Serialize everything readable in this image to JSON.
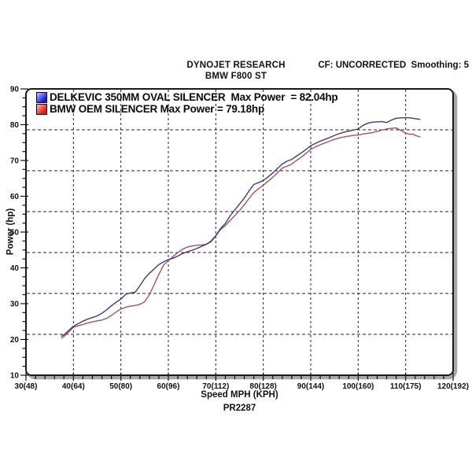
{
  "header": {
    "title": "DYNOJET RESEARCH",
    "subtitle": "BMW F800 ST",
    "correction_info": "CF: UNCORRECTED  Smoothing: 5"
  },
  "legend": {
    "items": [
      {
        "label": "DELKEVIC 350MM OVAL SILENCER  Max Power  = 82.04hp",
        "swatch_color": "#1a1af0",
        "swatch_light": "#c8c8ff"
      },
      {
        "label": "BMW OEM SILENCER Max Power = 79.18hp",
        "swatch_color": "#ee1212",
        "swatch_light": "#ffc4c4"
      }
    ]
  },
  "footer": {
    "run_code": "PR2287"
  },
  "chart_data": {
    "type": "line",
    "title": "DYNOJET RESEARCH",
    "subtitle": "BMW F800 ST",
    "xlabel": "Speed MPH (KPH)",
    "ylabel": "Power (hp)",
    "xlim": [
      30,
      120
    ],
    "ylim": [
      10,
      90
    ],
    "x_minor_step": 2,
    "y_minor_step": 2.5,
    "h_grid_divisions": 7,
    "grid_color": "#222222",
    "frame_color": "#1a1a1a",
    "shadow_color": "#a8a8a8",
    "x_ticks": [
      {
        "v": 30,
        "label": "30(48)"
      },
      {
        "v": 40,
        "label": "40(64)"
      },
      {
        "v": 50,
        "label": "50(80)"
      },
      {
        "v": 60,
        "label": "60(96)"
      },
      {
        "v": 70,
        "label": "70(112)"
      },
      {
        "v": 80,
        "label": "80(128)"
      },
      {
        "v": 90,
        "label": "90(144)"
      },
      {
        "v": 100,
        "label": "100(160)"
      },
      {
        "v": 110,
        "label": "110(175)"
      },
      {
        "v": 120,
        "label": "120(192)"
      }
    ],
    "y_ticks": [
      {
        "v": 10,
        "label": "10"
      },
      {
        "v": 20,
        "label": "20"
      },
      {
        "v": 30,
        "label": "30"
      },
      {
        "v": 40,
        "label": "40"
      },
      {
        "v": 50,
        "label": "50"
      },
      {
        "v": 60,
        "label": "60"
      },
      {
        "v": 70,
        "label": "70"
      },
      {
        "v": 80,
        "label": "80"
      },
      {
        "v": 90,
        "label": "90"
      }
    ],
    "series": [
      {
        "name": "BMW OEM SILENCER",
        "max_power_hp": 79.18,
        "color": "#aa5353",
        "points": [
          [
            37.5,
            20.4
          ],
          [
            38,
            20.8
          ],
          [
            39,
            22.1
          ],
          [
            40,
            23.4
          ],
          [
            41,
            23.8
          ],
          [
            42,
            24.2
          ],
          [
            43,
            24.6
          ],
          [
            44,
            24.9
          ],
          [
            45,
            25.2
          ],
          [
            46,
            25.4
          ],
          [
            47,
            25.9
          ],
          [
            48,
            26.7
          ],
          [
            49,
            27.7
          ],
          [
            50,
            28.5
          ],
          [
            51,
            29.0
          ],
          [
            52,
            29.3
          ],
          [
            53,
            29.5
          ],
          [
            54,
            29.8
          ],
          [
            55,
            30.5
          ],
          [
            56,
            32.5
          ],
          [
            57,
            35.3
          ],
          [
            58,
            38.2
          ],
          [
            59,
            40.8
          ],
          [
            60,
            42.0
          ],
          [
            61,
            43.2
          ],
          [
            62,
            44.3
          ],
          [
            63,
            45.2
          ],
          [
            64,
            45.8
          ],
          [
            65,
            46.1
          ],
          [
            66,
            46.3
          ],
          [
            67,
            46.4
          ],
          [
            68,
            46.6
          ],
          [
            69,
            47.3
          ],
          [
            70,
            48.9
          ],
          [
            71,
            50.7
          ],
          [
            72,
            51.8
          ],
          [
            73,
            53.2
          ],
          [
            74,
            54.6
          ],
          [
            75,
            56.0
          ],
          [
            76,
            57.6
          ],
          [
            77,
            59.4
          ],
          [
            78,
            61.0
          ],
          [
            79,
            62.1
          ],
          [
            80,
            63.1
          ],
          [
            81,
            64.2
          ],
          [
            82,
            65.3
          ],
          [
            83,
            66.6
          ],
          [
            84,
            67.9
          ],
          [
            85,
            68.4
          ],
          [
            86,
            69.0
          ],
          [
            87,
            70.0
          ],
          [
            88,
            70.9
          ],
          [
            89,
            72.0
          ],
          [
            90,
            73.1
          ],
          [
            91,
            73.8
          ],
          [
            92,
            74.4
          ],
          [
            93,
            74.9
          ],
          [
            94,
            75.4
          ],
          [
            95,
            75.9
          ],
          [
            96,
            76.3
          ],
          [
            97,
            76.6
          ],
          [
            98,
            76.8
          ],
          [
            99,
            77.0
          ],
          [
            100,
            77.1
          ],
          [
            101,
            77.4
          ],
          [
            102,
            77.6
          ],
          [
            103,
            77.8
          ],
          [
            104,
            78.1
          ],
          [
            105,
            78.5
          ],
          [
            106,
            78.8
          ],
          [
            107,
            79.0
          ],
          [
            108,
            79.1
          ],
          [
            109,
            78.4
          ],
          [
            110,
            77.6
          ],
          [
            111,
            77.3
          ],
          [
            111.5,
            77.4
          ],
          [
            112,
            77.0
          ],
          [
            113,
            76.6
          ]
        ]
      },
      {
        "name": "DELKEVIC 350MM OVAL SILENCER",
        "max_power_hp": 82.04,
        "color": "#3c3c82",
        "points": [
          [
            37.5,
            20.9
          ],
          [
            38,
            21.3
          ],
          [
            39,
            22.5
          ],
          [
            40,
            23.7
          ],
          [
            41,
            24.4
          ],
          [
            42,
            25.1
          ],
          [
            43,
            25.7
          ],
          [
            44,
            26.1
          ],
          [
            45,
            26.6
          ],
          [
            46,
            27.3
          ],
          [
            47,
            28.3
          ],
          [
            48,
            29.4
          ],
          [
            49,
            30.4
          ],
          [
            50,
            31.3
          ],
          [
            51,
            32.6
          ],
          [
            52,
            33.0
          ],
          [
            53,
            33.2
          ],
          [
            54,
            35.0
          ],
          [
            55,
            37.0
          ],
          [
            56,
            38.5
          ],
          [
            57,
            39.7
          ],
          [
            58,
            40.9
          ],
          [
            59,
            41.7
          ],
          [
            60,
            42.3
          ],
          [
            61,
            42.7
          ],
          [
            62,
            43.3
          ],
          [
            63,
            44.0
          ],
          [
            64,
            44.5
          ],
          [
            65,
            44.9
          ],
          [
            66,
            45.4
          ],
          [
            67,
            46.0
          ],
          [
            68,
            46.6
          ],
          [
            69,
            47.5
          ],
          [
            70,
            49.0
          ],
          [
            71,
            51.0
          ],
          [
            72,
            52.4
          ],
          [
            73,
            54.5
          ],
          [
            74,
            56.2
          ],
          [
            75,
            57.8
          ],
          [
            76,
            59.5
          ],
          [
            77,
            61.5
          ],
          [
            78,
            63.3
          ],
          [
            79,
            63.8
          ],
          [
            80,
            64.4
          ],
          [
            81,
            65.4
          ],
          [
            82,
            66.5
          ],
          [
            83,
            67.8
          ],
          [
            84,
            69.0
          ],
          [
            85,
            69.8
          ],
          [
            86,
            70.3
          ],
          [
            87,
            71.2
          ],
          [
            88,
            72.1
          ],
          [
            89,
            73.1
          ],
          [
            90,
            74.1
          ],
          [
            91,
            74.8
          ],
          [
            92,
            75.4
          ],
          [
            93,
            75.9
          ],
          [
            94,
            76.4
          ],
          [
            95,
            77.0
          ],
          [
            96,
            77.5
          ],
          [
            97,
            77.9
          ],
          [
            98,
            78.2
          ],
          [
            99,
            78.5
          ],
          [
            100,
            78.8
          ],
          [
            101,
            79.8
          ],
          [
            102,
            80.4
          ],
          [
            103,
            80.7
          ],
          [
            104,
            80.8
          ],
          [
            105,
            80.9
          ],
          [
            106,
            80.6
          ],
          [
            107,
            81.3
          ],
          [
            108,
            81.8
          ],
          [
            109,
            81.9
          ],
          [
            110,
            82.0
          ],
          [
            111,
            81.9
          ],
          [
            112,
            81.7
          ],
          [
            113,
            81.5
          ]
        ]
      }
    ]
  }
}
